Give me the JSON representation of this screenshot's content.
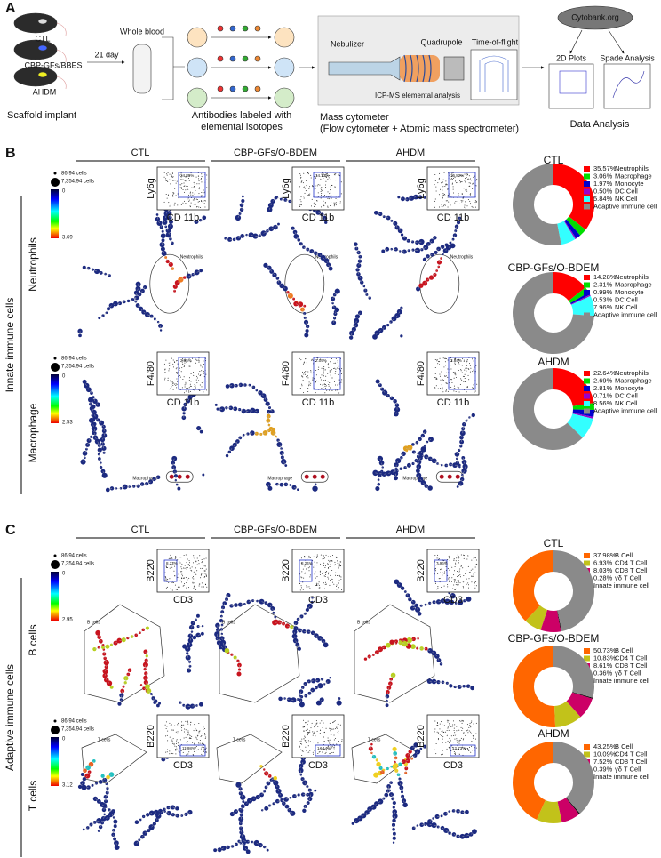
{
  "panel_a": {
    "label": "A",
    "mice": [
      "CTL",
      "CBP-GFs/BBES",
      "AHDM"
    ],
    "scaffold": "Scaffold implant",
    "interval": "21 day",
    "blood": "Whole blood",
    "antibodies": [
      "Antibodies labeled with",
      "elemental isotopes"
    ],
    "nebulizer": "Nebulizer",
    "icpms": "ICP-MS elemental analysis",
    "quadrupole": "Quadrupole",
    "tof": "Time-of-flight",
    "cytometer": [
      "Mass cytometer",
      "(Flow cytometer + Atomic mass spectrometer)"
    ],
    "cytobank": "Cytobank.org",
    "plots": "2D Plots",
    "spade": "Spade Analysis",
    "analysis": "Data Analysis"
  },
  "panel_b": {
    "label": "B",
    "columns": [
      "CTL",
      "CBP-GFs/O-BDEM",
      "AHDM"
    ],
    "group": "Innate immune cells",
    "size_small": "86.94 cells",
    "size_large": "7,354.94 cells",
    "scale_min": 0,
    "rows": [
      {
        "name": "Neutrophils",
        "scale_max": 3.69,
        "x_axis": "CD 11b",
        "y_axis": "Ly6g",
        "gate": "Neutrophils",
        "gate_values": [
          "24.89%",
          "14.13%",
          "16.82%"
        ]
      },
      {
        "name": "Macrophage",
        "scale_max": 2.53,
        "x_axis": "CD 11b",
        "y_axis": "F4/80",
        "gate": "Macrophage",
        "gate_values": [
          "2.85%",
          "2.09%",
          "2.84%"
        ]
      }
    ]
  },
  "panel_c": {
    "label": "C",
    "columns": [
      "CTL",
      "CBP-GFs/O-BDEM",
      "AHDM"
    ],
    "group": "Adaptive immune cells",
    "size_small": "86.94 cells",
    "size_large": "7,354.94 cells",
    "scale_min": 0,
    "rows": [
      {
        "name": "B cells",
        "scale_max": 2.95,
        "x_axis": "CD3",
        "y_axis": "B220",
        "gate": "B cells",
        "gate_values": [
          "8.22%",
          "8.24%",
          "7.96%"
        ]
      },
      {
        "name": "T cells",
        "scale_max": 3.12,
        "x_axis": "CD3",
        "y_axis": "B220",
        "gate": "T cells",
        "gate_values": [
          "11.98%",
          "14.14%",
          "12.73%"
        ]
      }
    ]
  },
  "chart_data": [
    {
      "type": "pie",
      "title": "CTL",
      "clockwise": true,
      "categories": [
        "Neutrophils",
        "Macrophage",
        "Monocyte",
        "DC Cell",
        "NK Cell",
        "Adaptive immune cell"
      ],
      "values": [
        35.57,
        3.06,
        1.97,
        0.5,
        5.84,
        53.06
      ],
      "value_labels": [
        "35.57%",
        "3.06%",
        "1.97%",
        "0.50%",
        "5.84%",
        null
      ],
      "colors": [
        "#ff0000",
        "#00dd00",
        "#0000cc",
        "#9900cc",
        "#33ffff",
        "#8a8a8a"
      ]
    },
    {
      "type": "pie",
      "title": "CBP-GFs/O-BDEM",
      "clockwise": true,
      "categories": [
        "Neutrophils",
        "Macrophage",
        "Monocyte",
        "DC Cell",
        "NK Cell",
        "Adaptive immune cell"
      ],
      "values": [
        14.28,
        2.31,
        0.99,
        0.53,
        7.96,
        73.93
      ],
      "value_labels": [
        "14.28%",
        "2.31%",
        "0.99%",
        "0.53%",
        "7.96%",
        null
      ],
      "colors": [
        "#ff0000",
        "#00dd00",
        "#0000cc",
        "#9900cc",
        "#33ffff",
        "#8a8a8a"
      ]
    },
    {
      "type": "pie",
      "title": "AHDM",
      "clockwise": true,
      "categories": [
        "Neutrophils",
        "Macrophage",
        "Monocyte",
        "DC Cell",
        "NK Cell",
        "Adaptive immune cell"
      ],
      "values": [
        22.64,
        2.69,
        2.81,
        0.71,
        8.56,
        62.59
      ],
      "value_labels": [
        "22.64%",
        "2.69%",
        "2.81%",
        "0.71%",
        "8.56%",
        null
      ],
      "colors": [
        "#ff0000",
        "#00dd00",
        "#0000cc",
        "#9900cc",
        "#33ffff",
        "#8a8a8a"
      ]
    },
    {
      "type": "pie",
      "title": "CTL",
      "clockwise": false,
      "categories": [
        "B Cell",
        "CD4 T Cell",
        "CD8 T Cell",
        "γδ T Cell",
        "Innate immune cell"
      ],
      "values": [
        37.98,
        6.93,
        8.03,
        0.28,
        46.78
      ],
      "value_labels": [
        "37.98%",
        "6.93%",
        "8.03%",
        "0.28%",
        null
      ],
      "colors": [
        "#ff6600",
        "#c2c21a",
        "#cc0066",
        "#000000",
        "#8a8a8a"
      ]
    },
    {
      "type": "pie",
      "title": "CBP-GFs/O-BDEM",
      "clockwise": false,
      "categories": [
        "B Cell",
        "CD4 T Cell",
        "CD8 T Cell",
        "γδ T Cell",
        "Innate immune cell"
      ],
      "values": [
        50.73,
        10.83,
        8.61,
        0.36,
        29.47
      ],
      "value_labels": [
        "50.73%",
        "10.83%",
        "8.61%",
        "0.36%",
        null
      ],
      "colors": [
        "#ff6600",
        "#c2c21a",
        "#cc0066",
        "#000000",
        "#8a8a8a"
      ]
    },
    {
      "type": "pie",
      "title": "AHDM",
      "clockwise": false,
      "categories": [
        "B Cell",
        "CD4 T Cell",
        "CD8 T Cell",
        "γδ T Cell",
        "Innate immune cell"
      ],
      "values": [
        43.25,
        10.09,
        7.52,
        0.39,
        38.75
      ],
      "value_labels": [
        "43.25%",
        "10.09%",
        "7.52%",
        "0.39%",
        null
      ],
      "colors": [
        "#ff6600",
        "#c2c21a",
        "#cc0066",
        "#000000",
        "#8a8a8a"
      ]
    }
  ]
}
